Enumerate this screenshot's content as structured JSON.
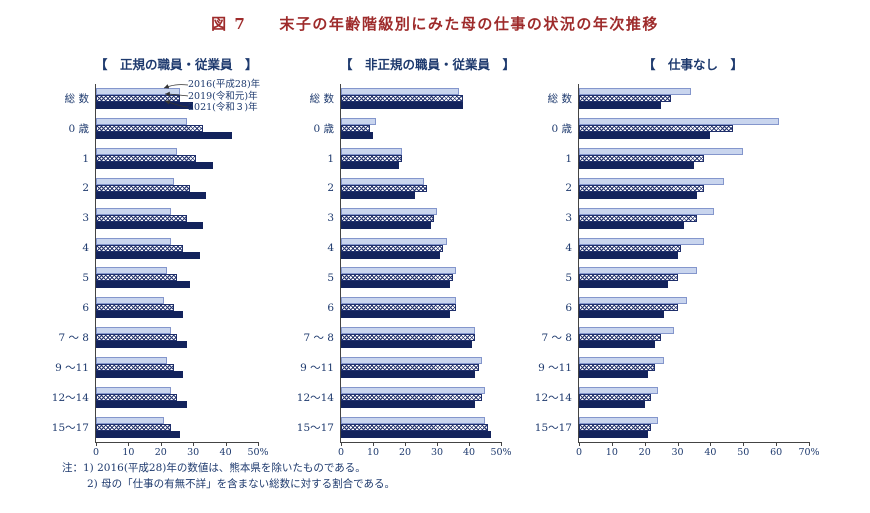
{
  "title": "図 7　　末子の年齢階級別にみた母の仕事の状況の年次推移",
  "legend": [
    "2016(平成28)年",
    "2019(令和元)年",
    "2021(令和３)年"
  ],
  "notes": [
    "注：1)  2016(平成28)年の数値は、熊本県を除いたものである。",
    "2)  母の「仕事の有無不詳」を含まない総数に対する割合である。"
  ],
  "colors": {
    "title_red": "#9e2b2b",
    "text_navy": "#1e3a6e",
    "bar_2016_fill": "#c9d5ee",
    "bar_2019_hatch": "#1f2f6b",
    "bar_2021_fill": "#13235c"
  },
  "chart_data": [
    {
      "type": "bar",
      "orientation": "horizontal",
      "title": "【　正規の職員・従業員　】",
      "categories": [
        "総 数",
        "0 歳",
        "1",
        "2",
        "3",
        "4",
        "5",
        "6",
        "7 ～ 8",
        "9 ～11",
        "12～14",
        "15～17"
      ],
      "series": [
        {
          "name": "2016(平成28)年",
          "values": [
            26,
            28,
            25,
            24,
            23,
            23,
            22,
            21,
            23,
            22,
            23,
            21
          ]
        },
        {
          "name": "2019(令和元)年",
          "values": [
            26,
            33,
            31,
            29,
            28,
            27,
            25,
            24,
            25,
            24,
            25,
            23
          ]
        },
        {
          "name": "2021(令和３)年",
          "values": [
            30,
            42,
            36,
            34,
            33,
            32,
            29,
            27,
            28,
            27,
            28,
            26
          ]
        }
      ],
      "xlim": [
        0,
        50
      ],
      "ticks": [
        0,
        10,
        20,
        30,
        40,
        50
      ],
      "tick_labels": [
        "0",
        "10",
        "20",
        "30",
        "40",
        "50%"
      ],
      "unit": "%",
      "grid": false
    },
    {
      "type": "bar",
      "orientation": "horizontal",
      "title": "【　非正規の職員・従業員　】",
      "categories": [
        "総 数",
        "0 歳",
        "1",
        "2",
        "3",
        "4",
        "5",
        "6",
        "7 ～ 8",
        "9 ～11",
        "12～14",
        "15～17"
      ],
      "series": [
        {
          "name": "2016(平成28)年",
          "values": [
            37,
            11,
            19,
            26,
            30,
            33,
            36,
            36,
            42,
            44,
            45,
            45
          ]
        },
        {
          "name": "2019(令和元)年",
          "values": [
            38,
            9,
            19,
            27,
            29,
            32,
            35,
            36,
            42,
            43,
            44,
            46
          ]
        },
        {
          "name": "2021(令和３)年",
          "values": [
            38,
            10,
            18,
            23,
            28,
            31,
            34,
            34,
            41,
            42,
            42,
            47
          ]
        }
      ],
      "xlim": [
        0,
        50
      ],
      "ticks": [
        0,
        10,
        20,
        30,
        40,
        50
      ],
      "tick_labels": [
        "0",
        "10",
        "20",
        "30",
        "40",
        "50%"
      ],
      "unit": "%",
      "grid": false
    },
    {
      "type": "bar",
      "orientation": "horizontal",
      "title": "【　仕事なし　】",
      "categories": [
        "総 数",
        "0 歳",
        "1",
        "2",
        "3",
        "4",
        "5",
        "6",
        "7 ～ 8",
        "9 ～11",
        "12～14",
        "15～17"
      ],
      "series": [
        {
          "name": "2016(平成28)年",
          "values": [
            34,
            61,
            50,
            44,
            41,
            38,
            36,
            33,
            29,
            26,
            24,
            24
          ]
        },
        {
          "name": "2019(令和元)年",
          "values": [
            28,
            47,
            38,
            38,
            36,
            31,
            30,
            30,
            25,
            23,
            22,
            22
          ]
        },
        {
          "name": "2021(令和３)年",
          "values": [
            25,
            40,
            35,
            36,
            32,
            30,
            27,
            26,
            23,
            21,
            20,
            21
          ]
        }
      ],
      "xlim": [
        0,
        70
      ],
      "ticks": [
        0,
        10,
        20,
        30,
        40,
        50,
        60,
        70
      ],
      "tick_labels": [
        "0",
        "10",
        "20",
        "30",
        "40",
        "50",
        "60",
        "70%"
      ],
      "unit": "%",
      "grid": false
    }
  ]
}
